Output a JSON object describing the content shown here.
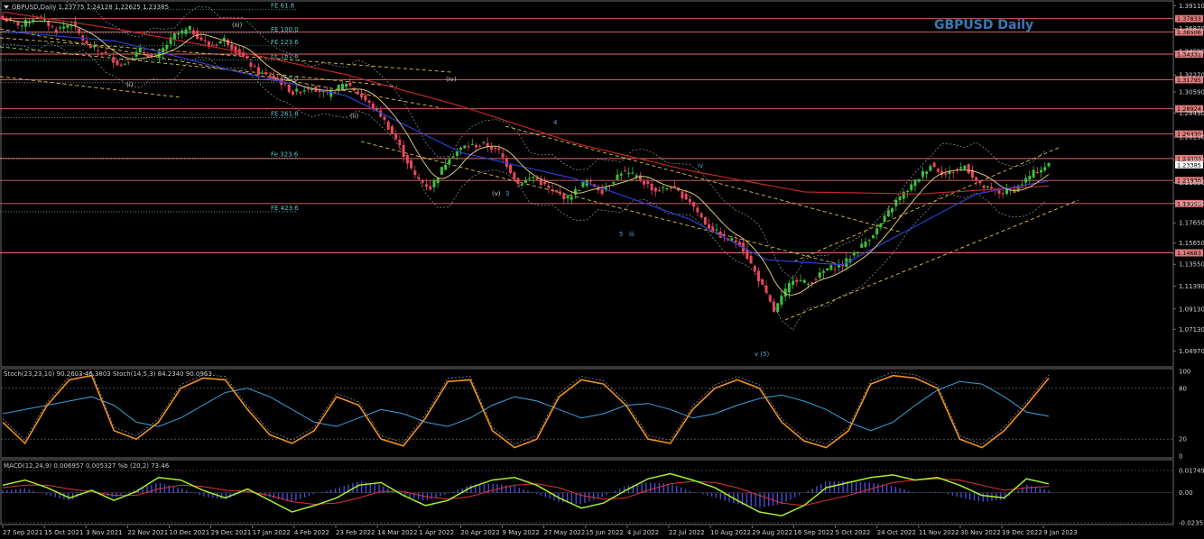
{
  "header": {
    "symbol_line": "GBPUSD,Daily  1.23775 1.24128 1.22625 1.23385",
    "watermark": "GBPUSD Daily"
  },
  "colors": {
    "background": "#000000",
    "bull": "#3fbf3f",
    "bear": "#e8475d",
    "sma_long": "#c0282a",
    "sma_mid": "#2b3fd4",
    "sma_short": "#d9c27a",
    "hline": "#e36a6a",
    "stoch_fast": "#f0901e",
    "stoch_slow": "#3aa0e0",
    "macd_line": "#a6f02a",
    "macd_signal": "#e0303a",
    "macd_hist": "#4a4ad8",
    "fib": "#5fc6c6",
    "trend": "#e0c040"
  },
  "chart_data": [
    {
      "type": "candlestick",
      "title": "GBPUSD Daily",
      "symbol": "GBPUSD",
      "timeframe": "Daily",
      "ohlc_last": {
        "open": 1.23775,
        "high": 1.24128,
        "low": 1.22625,
        "close": 1.23385
      },
      "ylim": [
        1.035,
        1.395
      ],
      "y_ticks": [
        1.3911,
        1.3687,
        1.3459,
        1.3227,
        1.3059,
        1.2849,
        1.2613,
        1.2386,
        1.2163,
        1.1959,
        1.1765,
        1.1565,
        1.1355,
        1.1139,
        1.0913,
        1.0713,
        1.0497
      ],
      "y_tick_labels": [
        "1.39110",
        "1.36870",
        "1.34590",
        "1.32270",
        "1.30590",
        "1.28490",
        "1.26130",
        "1.23860",
        "1.21630",
        "1.19590",
        "1.17650",
        "1.15650",
        "1.13550",
        "1.11390",
        "1.09130",
        "1.07130",
        "1.04970"
      ],
      "x_tick_labels": [
        "27 Sep 2021",
        "15 Oct 2021",
        "3 Nov 2021",
        "22 Nov 2021",
        "10 Dec 2021",
        "29 Dec 2021",
        "17 Jan 2022",
        "4 Feb 2022",
        "23 Feb 2022",
        "14 Mar 2022",
        "1 Apr 2022",
        "20 Apr 2022",
        "9 May 2022",
        "27 May 2022",
        "15 Jun 2022",
        "4 Jul 2022",
        "22 Jul 2022",
        "10 Aug 2022",
        "29 Aug 2022",
        "16 Sep 2022",
        "5 Oct 2022",
        "24 Oct 2022",
        "11 Nov 2022",
        "30 Nov 2022",
        "19 Dec 2022",
        "9 Jan 2023"
      ],
      "price_levels": [
        {
          "value": 1.37833,
          "label": "1.37833"
        },
        {
          "value": 1.36506,
          "label": "1.36506"
        },
        {
          "value": 1.34331,
          "label": "1.34331"
        },
        {
          "value": 1.31795,
          "label": "1.31795"
        },
        {
          "value": 1.28924,
          "label": "1.28924"
        },
        {
          "value": 1.2643,
          "label": "1.26430"
        },
        {
          "value": 1.24006,
          "label": "1.24006"
        },
        {
          "value": 1.21836,
          "label": "1.21836"
        },
        {
          "value": 1.19553,
          "label": "1.19553"
        },
        {
          "value": 1.14683,
          "label": "1.14683"
        }
      ],
      "current_price": {
        "value": 1.23385,
        "label": "1.23385"
      },
      "fib_levels": [
        {
          "value": 1.3875,
          "label": "FE 61.8"
        },
        {
          "value": 1.364,
          "label": "FE 100.0"
        },
        {
          "value": 1.3515,
          "label": "FE 123.6"
        },
        {
          "value": 1.3375,
          "label": "FE 161.8"
        },
        {
          "value": 1.315,
          "label": "Fe 200.0"
        },
        {
          "value": 1.2805,
          "label": "FE 261.8"
        },
        {
          "value": 1.2405,
          "label": "Fe 323.6"
        },
        {
          "value": 1.1875,
          "label": "FE 423.6"
        }
      ],
      "wave_labels": [
        "(i)",
        "(ii)",
        "(iii)",
        "(iv)",
        "(v)",
        "3",
        "4",
        "5",
        "iii",
        "iv",
        "v (5)"
      ],
      "close_path": [
        [
          0,
          1.378
        ],
        [
          5,
          1.372
        ],
        [
          9,
          1.381
        ],
        [
          14,
          1.367
        ],
        [
          18,
          1.374
        ],
        [
          22,
          1.352
        ],
        [
          27,
          1.343
        ],
        [
          31,
          1.332
        ],
        [
          36,
          1.347
        ],
        [
          40,
          1.339
        ],
        [
          45,
          1.362
        ],
        [
          49,
          1.368
        ],
        [
          54,
          1.351
        ],
        [
          58,
          1.358
        ],
        [
          63,
          1.34
        ],
        [
          67,
          1.325
        ],
        [
          72,
          1.318
        ],
        [
          76,
          1.305
        ],
        [
          81,
          1.311
        ],
        [
          85,
          1.303
        ],
        [
          90,
          1.315
        ],
        [
          94,
          1.301
        ],
        [
          99,
          1.283
        ],
        [
          103,
          1.259
        ],
        [
          108,
          1.222
        ],
        [
          112,
          1.211
        ],
        [
          117,
          1.242
        ],
        [
          121,
          1.252
        ],
        [
          126,
          1.254
        ],
        [
          130,
          1.247
        ],
        [
          135,
          1.215
        ],
        [
          139,
          1.222
        ],
        [
          144,
          1.207
        ],
        [
          148,
          1.201
        ],
        [
          153,
          1.218
        ],
        [
          157,
          1.208
        ],
        [
          162,
          1.227
        ],
        [
          166,
          1.222
        ],
        [
          171,
          1.208
        ],
        [
          175,
          1.212
        ],
        [
          180,
          1.198
        ],
        [
          184,
          1.176
        ],
        [
          189,
          1.161
        ],
        [
          193,
          1.157
        ],
        [
          198,
          1.121
        ],
        [
          202,
          1.089
        ],
        [
          207,
          1.122
        ],
        [
          211,
          1.116
        ],
        [
          216,
          1.131
        ],
        [
          220,
          1.135
        ],
        [
          225,
          1.154
        ],
        [
          229,
          1.17
        ],
        [
          234,
          1.198
        ],
        [
          238,
          1.213
        ],
        [
          243,
          1.234
        ],
        [
          247,
          1.224
        ],
        [
          252,
          1.233
        ],
        [
          256,
          1.213
        ],
        [
          261,
          1.206
        ],
        [
          265,
          1.209
        ],
        [
          270,
          1.226
        ],
        [
          274,
          1.234
        ]
      ],
      "sma_long_path": [
        [
          0,
          1.385
        ],
        [
          30,
          1.368
        ],
        [
          60,
          1.347
        ],
        [
          90,
          1.323
        ],
        [
          120,
          1.292
        ],
        [
          150,
          1.255
        ],
        [
          180,
          1.228
        ],
        [
          210,
          1.207
        ],
        [
          240,
          1.205
        ],
        [
          274,
          1.213
        ]
      ],
      "sma_mid_path": [
        [
          0,
          1.366
        ],
        [
          30,
          1.356
        ],
        [
          60,
          1.327
        ],
        [
          90,
          1.302
        ],
        [
          120,
          1.246
        ],
        [
          150,
          1.22
        ],
        [
          180,
          1.18
        ],
        [
          200,
          1.14
        ],
        [
          220,
          1.135
        ],
        [
          240,
          1.175
        ],
        [
          255,
          1.205
        ],
        [
          274,
          1.218
        ]
      ]
    },
    {
      "type": "line",
      "title": "Stoch(23,23,10) 90.2603 46.3803  Stoch(14,5,3) 84.2340 90.0963",
      "ylim": [
        0,
        100
      ],
      "y_ticks": [
        100,
        80,
        20,
        0
      ],
      "series": [
        {
          "name": "Stoch(14,5,3) main",
          "values": [
            40,
            15,
            60,
            90,
            95,
            30,
            20,
            40,
            80,
            92,
            90,
            55,
            25,
            15,
            30,
            70,
            60,
            20,
            12,
            45,
            88,
            90,
            30,
            10,
            20,
            70,
            90,
            85,
            60,
            20,
            15,
            55,
            80,
            90,
            80,
            40,
            18,
            10,
            30,
            85,
            95,
            92,
            80,
            20,
            10,
            30,
            60,
            92
          ]
        },
        {
          "name": "Stoch(23,23,10) signal",
          "values": [
            50,
            55,
            60,
            65,
            70,
            60,
            40,
            35,
            45,
            60,
            75,
            80,
            70,
            55,
            40,
            35,
            45,
            55,
            50,
            40,
            35,
            45,
            60,
            70,
            65,
            55,
            45,
            50,
            60,
            62,
            55,
            45,
            50,
            60,
            68,
            72,
            65,
            55,
            40,
            30,
            40,
            60,
            78,
            88,
            85,
            70,
            52,
            47
          ]
        }
      ]
    },
    {
      "type": "line",
      "title": "MACD(12,24,9) 0.006957 0.005327  %b (20,2) 73.46",
      "ylim": [
        -0.023513,
        0.017494
      ],
      "y_ticks": [
        0.017494,
        0.0,
        -0.023513
      ],
      "y_tick_labels": [
        "0.017494",
        "0.00",
        "-0.023513"
      ],
      "series": [
        {
          "name": "MACD",
          "values": [
            0.006,
            0.01,
            0.004,
            -0.004,
            0.002,
            -0.006,
            0.001,
            0.012,
            0.01,
            0.002,
            -0.004,
            0.003,
            -0.006,
            -0.015,
            -0.01,
            -0.004,
            0.006,
            0.008,
            -0.002,
            -0.01,
            -0.006,
            0.004,
            0.01,
            0.012,
            0.006,
            -0.004,
            -0.012,
            -0.008,
            0.002,
            0.011,
            0.015,
            0.01,
            0.004,
            -0.006,
            -0.015,
            -0.018,
            -0.01,
            0.004,
            0.008,
            0.012,
            0.014,
            0.01,
            0.012,
            0.006,
            -0.002,
            -0.004,
            0.011,
            0.007
          ]
        },
        {
          "name": "Signal",
          "values": [
            0.004,
            0.006,
            0.006,
            0.003,
            0.001,
            -0.002,
            -0.002,
            0.003,
            0.006,
            0.005,
            0.002,
            0.001,
            -0.002,
            -0.007,
            -0.009,
            -0.008,
            -0.004,
            0.001,
            0.001,
            -0.003,
            -0.005,
            -0.003,
            0.002,
            0.006,
            0.007,
            0.004,
            -0.002,
            -0.005,
            -0.004,
            0.002,
            0.007,
            0.009,
            0.008,
            0.004,
            -0.002,
            -0.008,
            -0.01,
            -0.006,
            -0.002,
            0.003,
            0.008,
            0.01,
            0.011,
            0.01,
            0.006,
            0.002,
            0.004,
            0.005
          ]
        }
      ]
    }
  ]
}
